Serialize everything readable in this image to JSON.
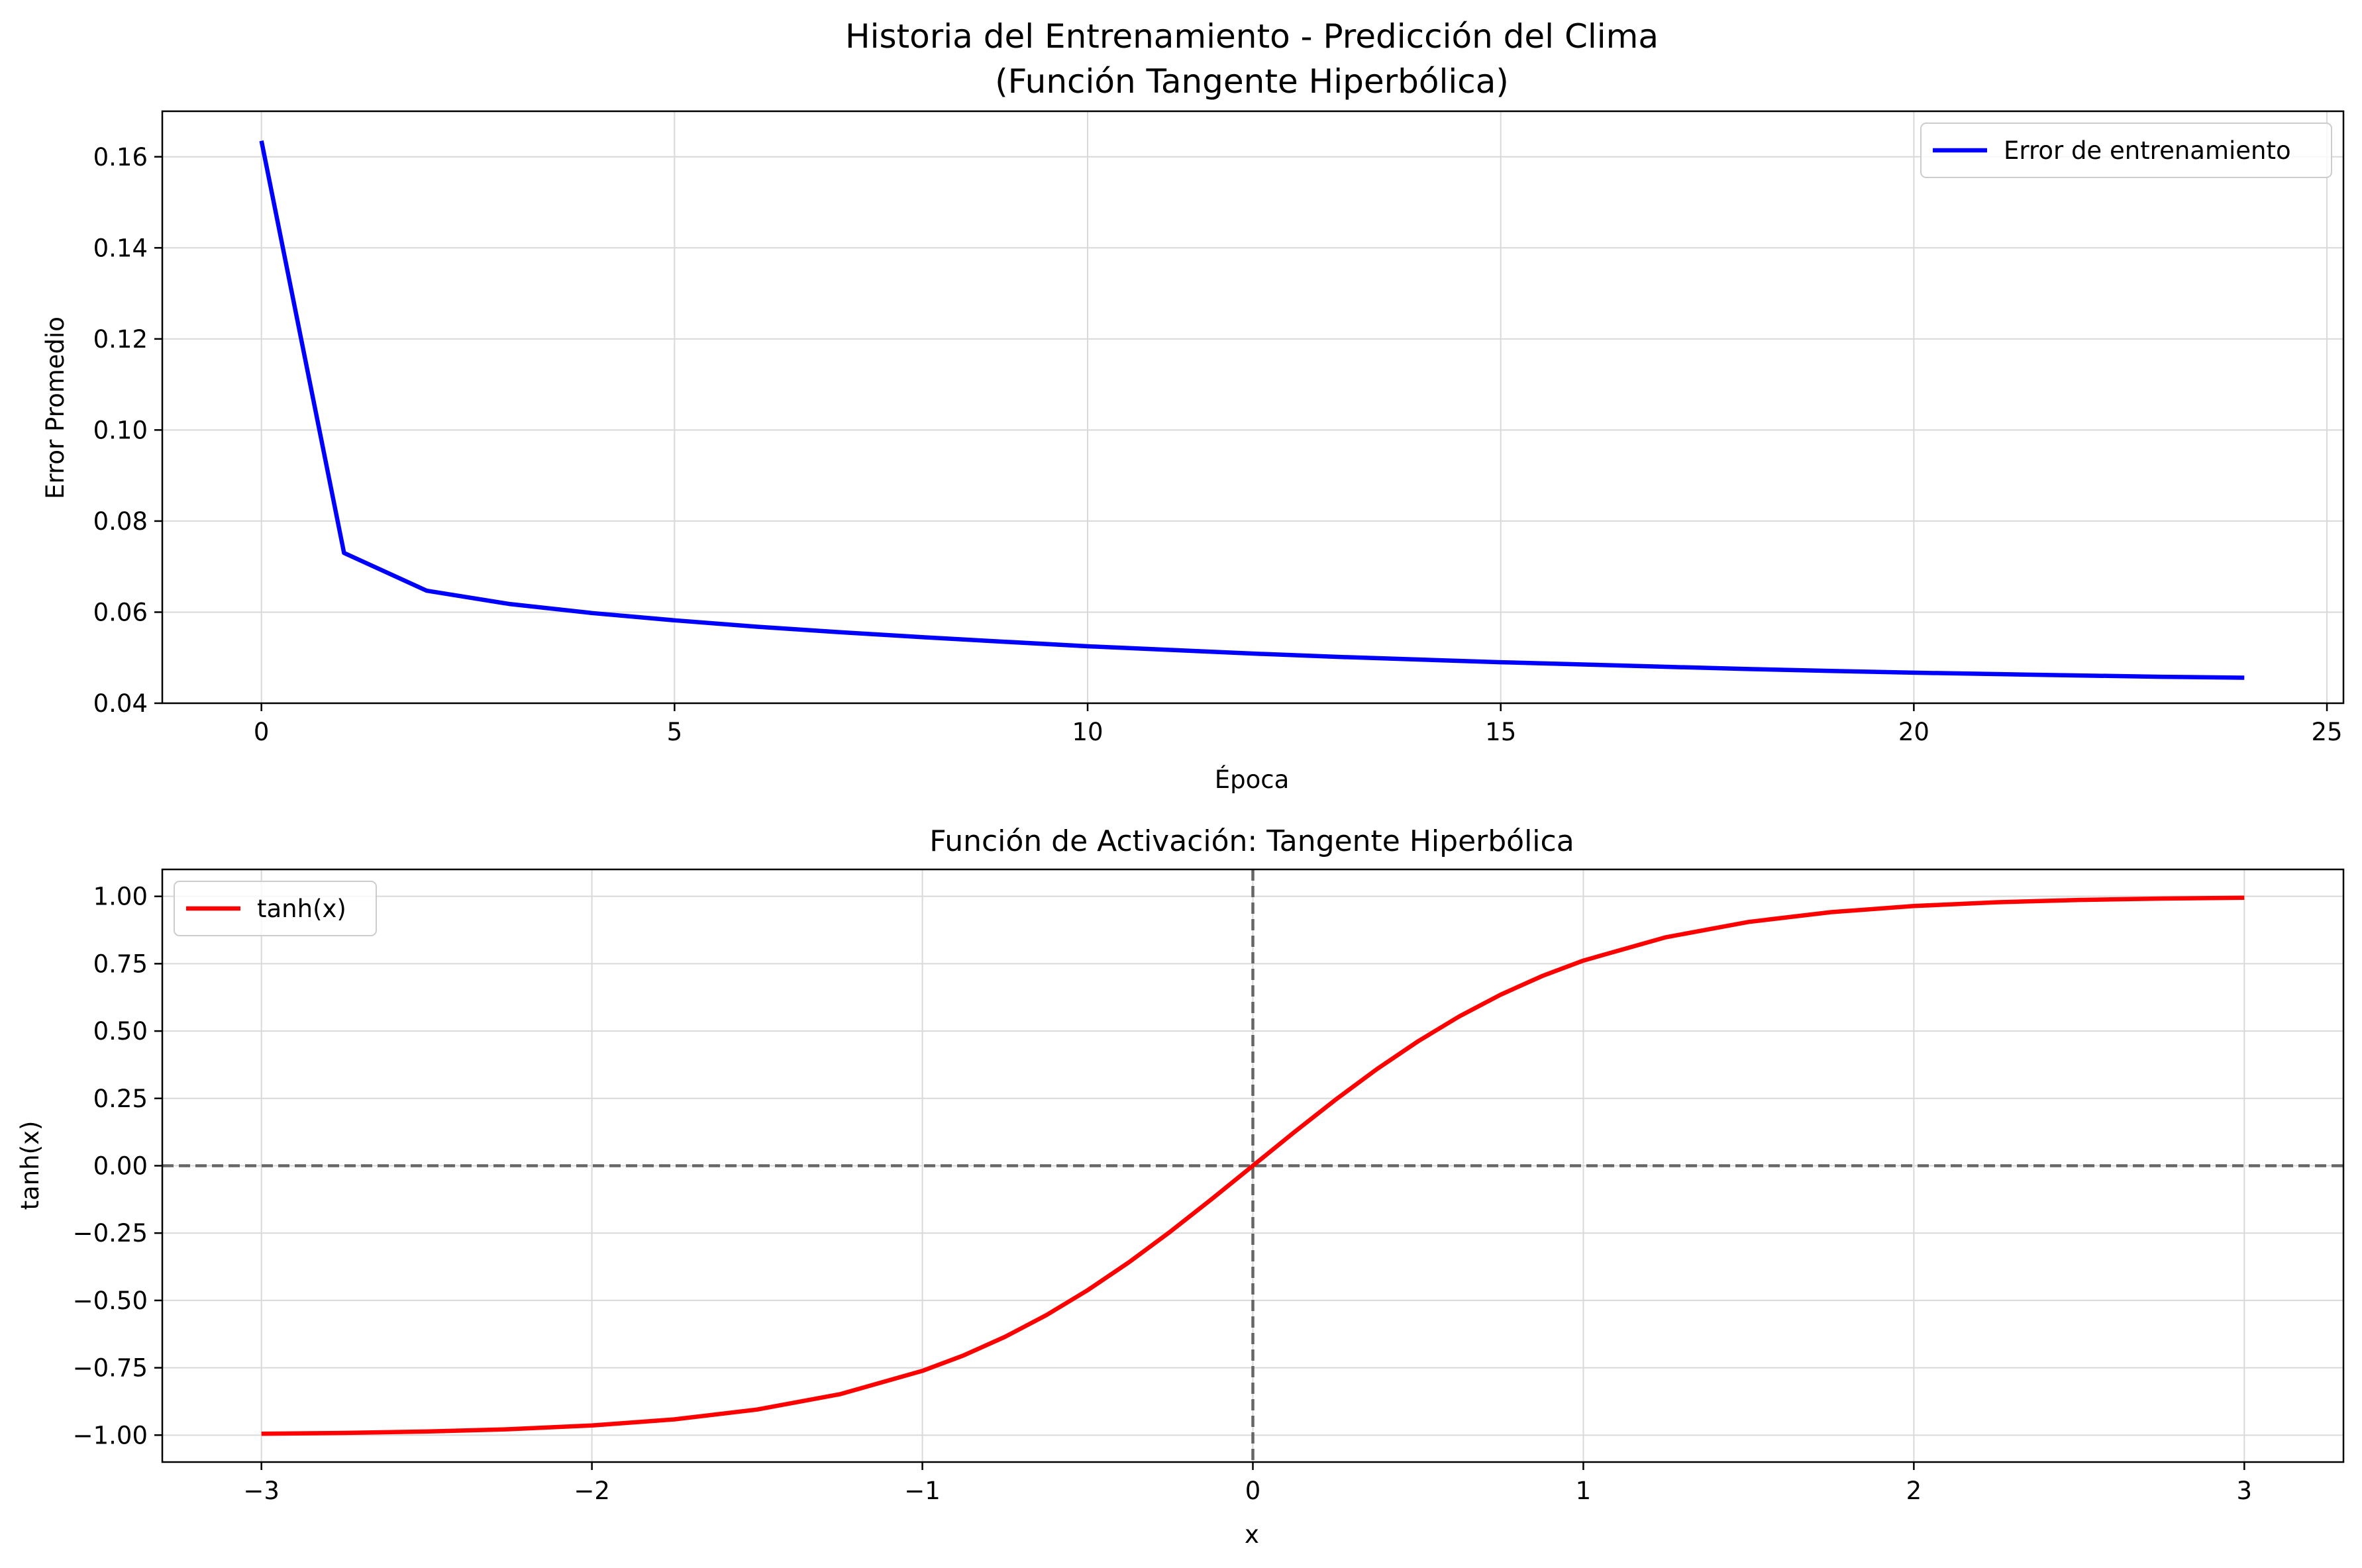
{
  "chart_data": [
    {
      "type": "line",
      "title_line1": "Historia del Entrenamiento - Predicción del Clima",
      "title_line2": "(Función Tangente Hiperbólica)",
      "xlabel": "Época",
      "ylabel": "Error Promedio",
      "xlim": [
        -1.2,
        25.2
      ],
      "ylim": [
        0.04,
        0.17
      ],
      "xticks": [
        0,
        5,
        10,
        15,
        20,
        25
      ],
      "xtick_labels": [
        "0",
        "5",
        "10",
        "15",
        "20",
        "25"
      ],
      "yticks": [
        0.04,
        0.06,
        0.08,
        0.1,
        0.12,
        0.14,
        0.16
      ],
      "ytick_labels": [
        "0.04",
        "0.06",
        "0.08",
        "0.10",
        "0.12",
        "0.14",
        "0.16"
      ],
      "grid": true,
      "legend_position": "top-right",
      "series": [
        {
          "name": "Error de entrenamiento",
          "color": "#0000ff",
          "x": [
            0,
            1,
            2,
            3,
            4,
            5,
            6,
            7,
            8,
            9,
            10,
            11,
            12,
            13,
            14,
            15,
            16,
            17,
            18,
            19,
            20,
            21,
            22,
            23,
            24
          ],
          "y": [
            0.1635,
            0.073,
            0.0647,
            0.0618,
            0.0598,
            0.0582,
            0.0568,
            0.0556,
            0.0545,
            0.0535,
            0.0525,
            0.0517,
            0.0509,
            0.0502,
            0.0496,
            0.049,
            0.0485,
            0.048,
            0.0475,
            0.0471,
            0.0467,
            0.0464,
            0.0461,
            0.0458,
            0.0456
          ]
        }
      ]
    },
    {
      "type": "line",
      "title": "Función de Activación: Tangente Hiperbólica",
      "xlabel": "x",
      "ylabel": "tanh(x)",
      "xlim": [
        -3.3,
        3.3
      ],
      "ylim": [
        -1.1,
        1.1
      ],
      "xticks": [
        -3,
        -2,
        -1,
        0,
        1,
        2,
        3
      ],
      "xtick_labels": [
        "−3",
        "−2",
        "−1",
        "0",
        "1",
        "2",
        "3"
      ],
      "yticks": [
        -1.0,
        -0.75,
        -0.5,
        -0.25,
        0.0,
        0.25,
        0.5,
        0.75,
        1.0
      ],
      "ytick_labels": [
        "−1.00",
        "−0.75",
        "−0.50",
        "−0.25",
        "0.00",
        "0.25",
        "0.50",
        "0.75",
        "1.00"
      ],
      "grid": true,
      "legend_position": "top-left",
      "reference_lines": {
        "horizontal_y": 0,
        "vertical_x": 0,
        "color": "#666666",
        "style": "dashed"
      },
      "series": [
        {
          "name": "tanh(x)",
          "color": "#ff0000",
          "x": [
            -3.0,
            -2.75,
            -2.5,
            -2.25,
            -2.0,
            -1.75,
            -1.5,
            -1.25,
            -1.0,
            -0.875,
            -0.75,
            -0.625,
            -0.5,
            -0.375,
            -0.25,
            -0.125,
            0.0,
            0.125,
            0.25,
            0.375,
            0.5,
            0.625,
            0.75,
            0.875,
            1.0,
            1.25,
            1.5,
            1.75,
            2.0,
            2.25,
            2.5,
            2.75,
            3.0
          ],
          "y": [
            -0.9951,
            -0.9918,
            -0.9866,
            -0.978,
            -0.964,
            -0.9414,
            -0.9051,
            -0.8483,
            -0.7616,
            -0.7039,
            -0.6351,
            -0.5546,
            -0.4621,
            -0.3584,
            -0.2449,
            -0.1244,
            0.0,
            0.1244,
            0.2449,
            0.3584,
            0.4621,
            0.5546,
            0.6351,
            0.7039,
            0.7616,
            0.8483,
            0.9051,
            0.9414,
            0.964,
            0.978,
            0.9866,
            0.9918,
            0.9951
          ]
        }
      ]
    }
  ]
}
